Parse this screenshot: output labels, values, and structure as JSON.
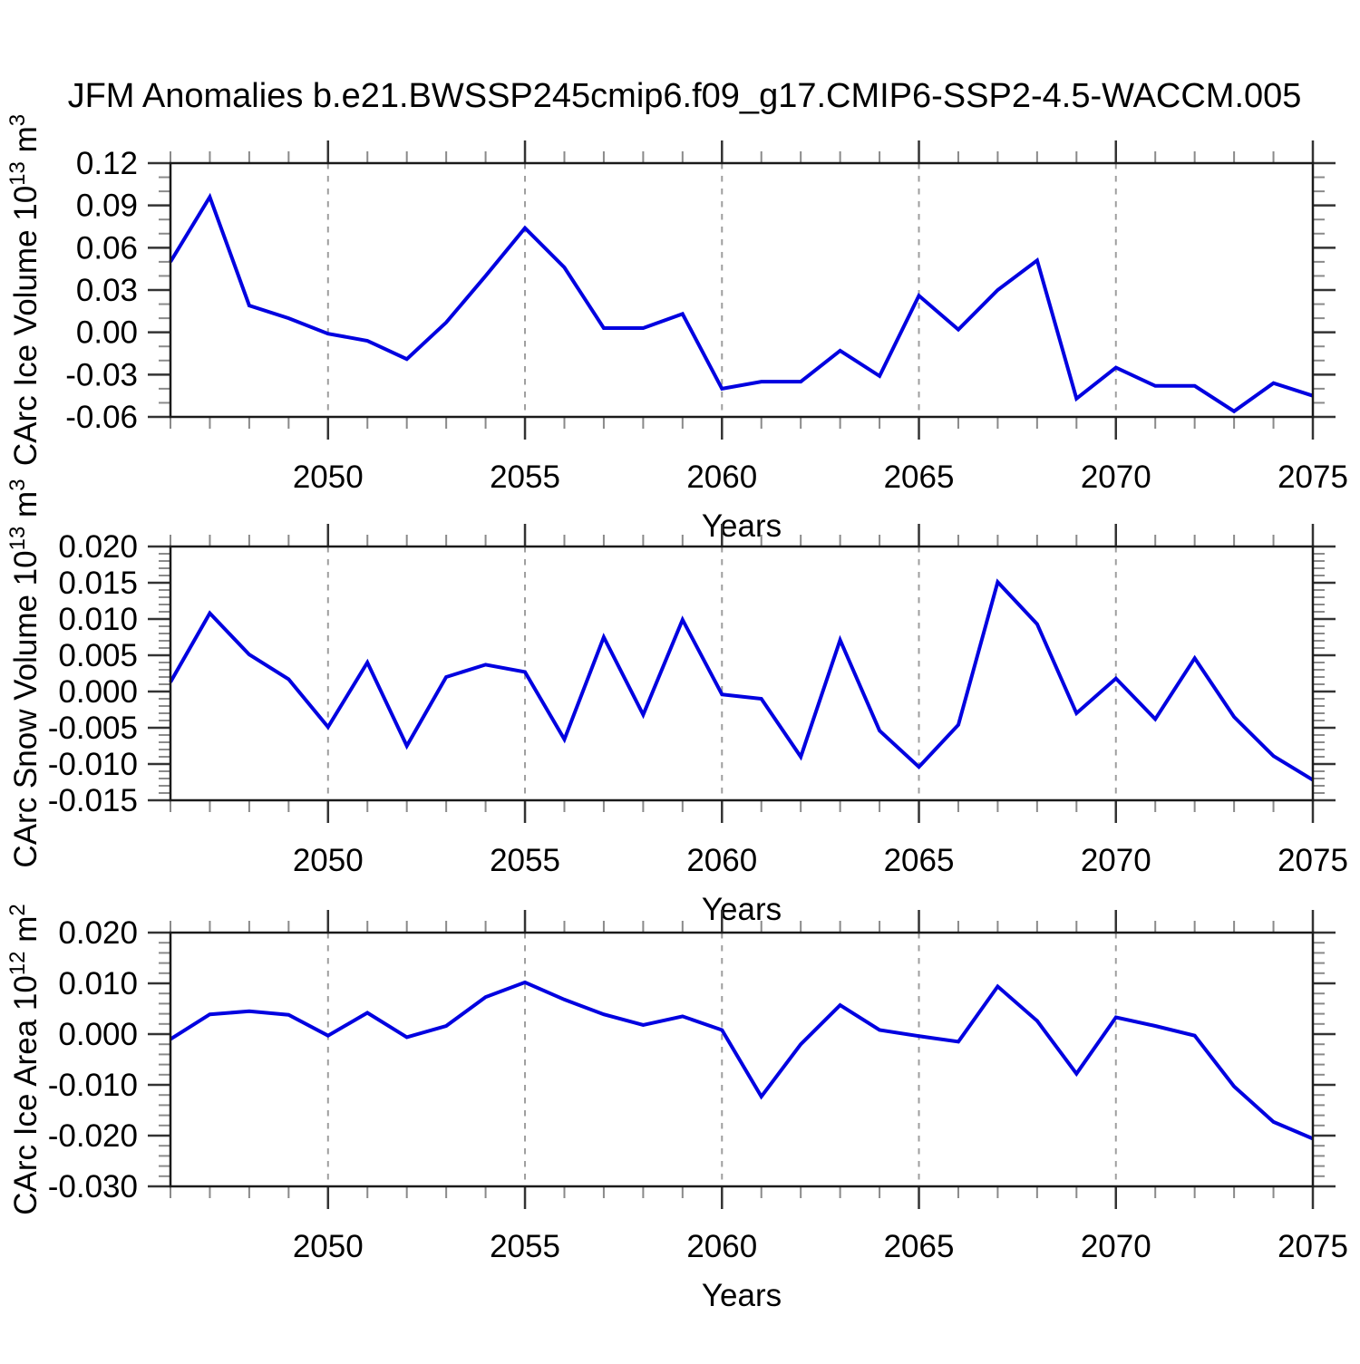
{
  "title": "JFM Anomalies b.e21.BWSSP245cmip6.f09_g17.CMIP6-SSP2-4.5-WACCM.005",
  "colors": {
    "line": "#0000e0",
    "grid": "#9e9e9e",
    "axis": "#1a1a1a",
    "tick_major": "#333333",
    "tick_minor": "#8a8a8a",
    "text": "#000000",
    "background": "#ffffff"
  },
  "chart_data": [
    {
      "type": "line",
      "ylabel": "CArc Ice Volume 10^13 m^3",
      "ylabel_parts": [
        {
          "text": "CArc Ice Volume 10",
          "sup": false
        },
        {
          "text": "13",
          "sup": true
        },
        {
          "text": " m",
          "sup": false
        },
        {
          "text": "3",
          "sup": true
        }
      ],
      "xlabel": "Years",
      "x": [
        2046,
        2047,
        2048,
        2049,
        2050,
        2051,
        2052,
        2053,
        2054,
        2055,
        2056,
        2057,
        2058,
        2059,
        2060,
        2061,
        2062,
        2063,
        2064,
        2065,
        2066,
        2067,
        2068,
        2069,
        2070,
        2071,
        2072,
        2073,
        2074,
        2075
      ],
      "values": [
        0.05,
        0.096,
        0.019,
        0.01,
        -0.001,
        -0.006,
        -0.019,
        0.007,
        0.04,
        0.074,
        0.046,
        0.003,
        0.003,
        0.013,
        -0.04,
        -0.035,
        -0.035,
        -0.013,
        -0.031,
        0.026,
        0.002,
        0.03,
        0.051,
        -0.047,
        -0.025,
        -0.038,
        -0.038,
        -0.056,
        -0.036,
        -0.045
      ],
      "xlim": [
        2046,
        2075
      ],
      "ylim": [
        -0.06,
        0.12
      ],
      "ytick_major": 0.03,
      "ytick_minor": 0.01,
      "ytick_labels": [
        "0.12",
        "0.09",
        "0.06",
        "0.03",
        "0.00",
        "-0.03",
        "-0.06"
      ],
      "xtick_labels": [
        "2050",
        "2055",
        "2060",
        "2065",
        "2070",
        "2075"
      ],
      "xticks_labeled": [
        2050,
        2055,
        2060,
        2065,
        2070,
        2075
      ],
      "gridlines_x": [
        2050,
        2055,
        2060,
        2065,
        2070
      ],
      "grid": "vertical-dashed",
      "legend": "none"
    },
    {
      "type": "line",
      "ylabel": "CArc Snow Volume 10^13 m^3",
      "ylabel_parts": [
        {
          "text": "CArc Snow Volume 10",
          "sup": false
        },
        {
          "text": "13",
          "sup": true
        },
        {
          "text": " m",
          "sup": false
        },
        {
          "text": "3",
          "sup": true
        }
      ],
      "xlabel": "Years",
      "x": [
        2046,
        2047,
        2048,
        2049,
        2050,
        2051,
        2052,
        2053,
        2054,
        2055,
        2056,
        2057,
        2058,
        2059,
        2060,
        2061,
        2062,
        2063,
        2064,
        2065,
        2066,
        2067,
        2068,
        2069,
        2070,
        2071,
        2072,
        2073,
        2074,
        2075
      ],
      "values": [
        0.0013,
        0.0108,
        0.0051,
        0.0017,
        -0.0049,
        0.004,
        -0.0075,
        0.002,
        0.0037,
        0.0027,
        -0.0066,
        0.0075,
        -0.0032,
        0.0099,
        -0.0004,
        -0.001,
        -0.009,
        0.0071,
        -0.0054,
        -0.0104,
        -0.0046,
        0.0151,
        0.0093,
        -0.003,
        0.0018,
        -0.0038,
        0.0046,
        -0.0035,
        -0.0089,
        -0.0122
      ],
      "xlim": [
        2046,
        2075
      ],
      "ylim": [
        -0.015,
        0.02
      ],
      "ytick_major": 0.005,
      "ytick_minor": 0.001,
      "ytick_labels": [
        "0.020",
        "0.015",
        "0.010",
        "0.005",
        "0.000",
        "-0.005",
        "-0.010",
        "-0.015"
      ],
      "xtick_labels": [
        "2050",
        "2055",
        "2060",
        "2065",
        "2070",
        "2075"
      ],
      "xticks_labeled": [
        2050,
        2055,
        2060,
        2065,
        2070,
        2075
      ],
      "gridlines_x": [
        2050,
        2055,
        2060,
        2065,
        2070
      ],
      "grid": "vertical-dashed",
      "legend": "none"
    },
    {
      "type": "line",
      "ylabel": "CArc Ice Area 10^12 m^2",
      "ylabel_parts": [
        {
          "text": "CArc Ice Area 10",
          "sup": false
        },
        {
          "text": "12",
          "sup": true
        },
        {
          "text": " m",
          "sup": false
        },
        {
          "text": "2",
          "sup": true
        }
      ],
      "xlabel": "Years",
      "x": [
        2046,
        2047,
        2048,
        2049,
        2050,
        2051,
        2052,
        2053,
        2054,
        2055,
        2056,
        2057,
        2058,
        2059,
        2060,
        2061,
        2062,
        2063,
        2064,
        2065,
        2066,
        2067,
        2068,
        2069,
        2070,
        2071,
        2072,
        2073,
        2074,
        2075
      ],
      "values": [
        -0.001,
        0.0039,
        0.0045,
        0.0038,
        -0.0003,
        0.0042,
        -0.0006,
        0.0016,
        0.0073,
        0.0102,
        0.0068,
        0.0039,
        0.0018,
        0.0035,
        0.0008,
        -0.0123,
        -0.002,
        0.0057,
        0.0008,
        -0.0004,
        -0.0015,
        0.0094,
        0.0026,
        -0.0078,
        0.0033,
        0.0016,
        -0.0003,
        -0.0103,
        -0.0173,
        -0.0206
      ],
      "xlim": [
        2046,
        2075
      ],
      "ylim": [
        -0.03,
        0.02
      ],
      "ytick_major": 0.01,
      "ytick_minor": 0.002,
      "ytick_labels": [
        "0.020",
        "0.010",
        "0.000",
        "-0.010",
        "-0.020",
        "-0.030"
      ],
      "xtick_labels": [
        "2050",
        "2055",
        "2060",
        "2065",
        "2070",
        "2075"
      ],
      "xticks_labeled": [
        2050,
        2055,
        2060,
        2065,
        2070,
        2075
      ],
      "gridlines_x": [
        2050,
        2055,
        2060,
        2065,
        2070
      ],
      "grid": "vertical-dashed",
      "legend": "none"
    }
  ]
}
